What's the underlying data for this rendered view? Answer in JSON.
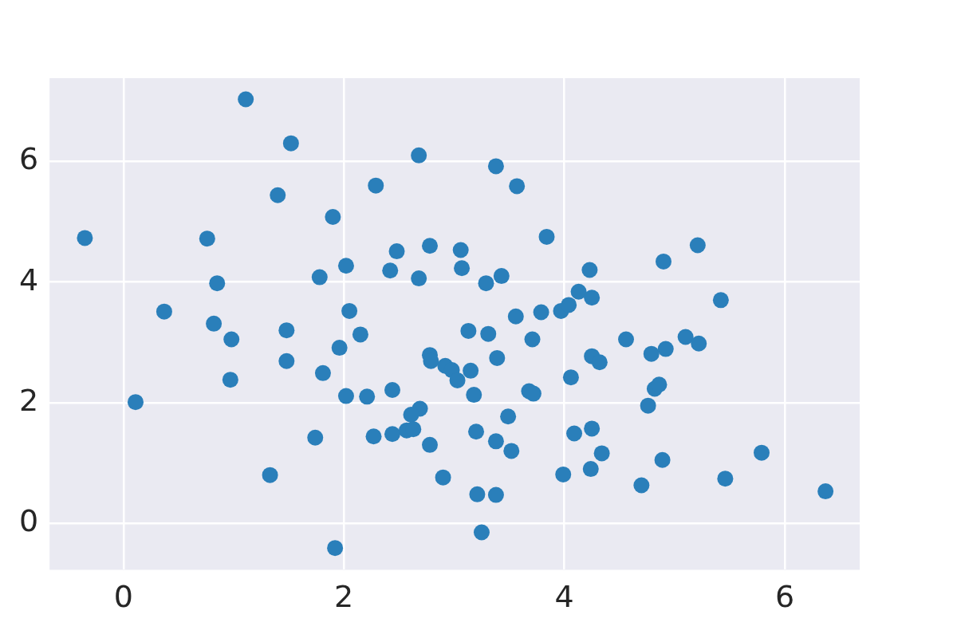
{
  "chart_data": {
    "type": "scatter",
    "color": "#2a7fba",
    "marker": "circle",
    "grid": true,
    "xlim": [
      -0.67,
      6.68
    ],
    "ylim": [
      -0.77,
      7.38
    ],
    "xticks": [
      0,
      2,
      4,
      6
    ],
    "yticks": [
      0,
      2,
      4,
      6
    ],
    "x": [
      -0.35,
      0.11,
      0.37,
      0.76,
      0.85,
      0.82,
      0.98,
      0.97,
      1.11,
      1.52,
      1.4,
      1.48,
      1.48,
      1.33,
      1.74,
      1.78,
      1.81,
      1.9,
      1.96,
      2.02,
      2.05,
      2.02,
      1.92,
      2.15,
      2.21,
      2.29,
      2.27,
      2.42,
      2.48,
      2.44,
      2.44,
      2.68,
      2.68,
      2.78,
      2.78,
      2.79,
      2.69,
      2.61,
      2.57,
      2.63,
      2.78,
      2.9,
      2.92,
      2.98,
      3.03,
      3.06,
      3.07,
      3.13,
      3.15,
      3.18,
      3.2,
      3.21,
      3.25,
      3.38,
      3.57,
      3.29,
      3.43,
      3.31,
      3.39,
      3.38,
      3.38,
      3.56,
      3.49,
      3.52,
      3.71,
      3.68,
      3.72,
      3.79,
      3.84,
      3.99,
      3.97,
      4.04,
      4.13,
      4.06,
      4.09,
      4.23,
      4.25,
      4.25,
      4.32,
      4.25,
      4.24,
      4.34,
      4.56,
      4.76,
      4.7,
      4.79,
      4.82,
      4.86,
      4.92,
      4.9,
      4.89,
      5.1,
      5.22,
      5.21,
      5.42,
      5.46,
      5.79,
      6.37
    ],
    "values": [
      4.73,
      2.01,
      3.51,
      4.72,
      3.98,
      3.31,
      3.05,
      2.38,
      7.03,
      6.3,
      5.44,
      3.2,
      2.69,
      0.8,
      1.42,
      4.08,
      2.49,
      5.08,
      2.91,
      4.27,
      3.52,
      2.11,
      -0.41,
      3.13,
      2.1,
      5.6,
      1.44,
      4.19,
      4.51,
      2.21,
      1.48,
      6.1,
      4.06,
      4.6,
      2.79,
      2.69,
      1.9,
      1.8,
      1.54,
      1.56,
      1.3,
      0.76,
      2.61,
      2.54,
      2.37,
      4.53,
      4.23,
      3.19,
      2.53,
      2.13,
      1.52,
      0.48,
      -0.15,
      5.92,
      5.59,
      3.98,
      4.1,
      3.14,
      2.74,
      1.36,
      0.47,
      3.43,
      1.77,
      1.2,
      3.05,
      2.19,
      2.15,
      3.5,
      4.75,
      0.81,
      3.52,
      3.62,
      3.84,
      2.42,
      1.49,
      4.2,
      3.74,
      2.77,
      2.67,
      1.57,
      0.9,
      1.16,
      3.05,
      1.95,
      0.63,
      2.81,
      2.23,
      2.3,
      2.89,
      4.34,
      1.05,
      3.09,
      2.98,
      4.61,
      3.7,
      0.74,
      1.17,
      0.53
    ]
  }
}
